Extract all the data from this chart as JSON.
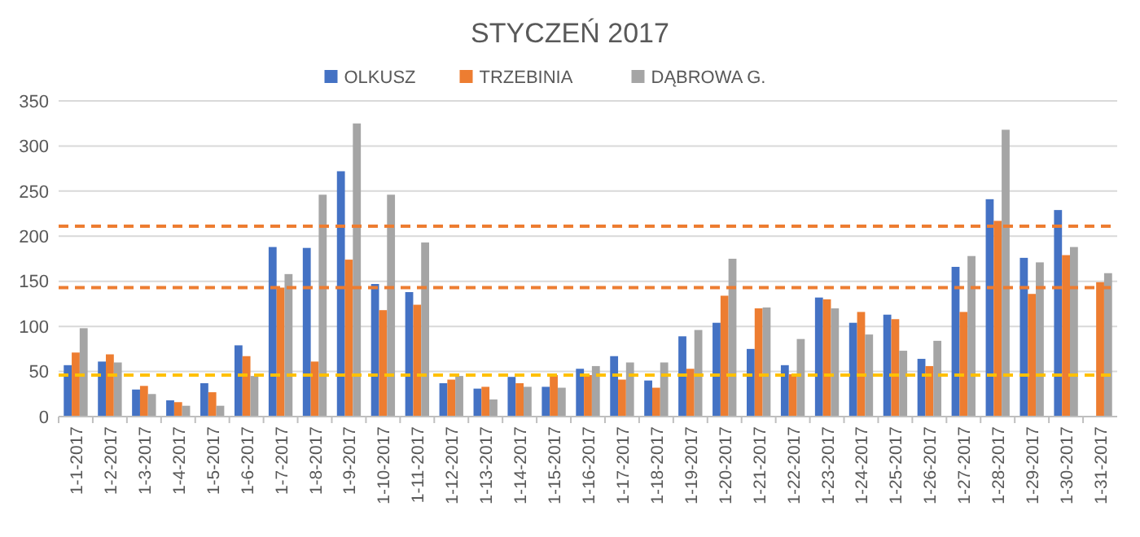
{
  "chart_data": {
    "type": "bar",
    "title": "STYCZEŃ 2017",
    "categories": [
      "1-1-2017",
      "1-2-2017",
      "1-3-2017",
      "1-4-2017",
      "1-5-2017",
      "1-6-2017",
      "1-7-2017",
      "1-8-2017",
      "1-9-2017",
      "1-10-2017",
      "1-11-2017",
      "1-12-2017",
      "1-13-2017",
      "1-14-2017",
      "1-15-2017",
      "1-16-2017",
      "1-17-2017",
      "1-18-2017",
      "1-19-2017",
      "1-20-2017",
      "1-21-2017",
      "1-22-2017",
      "1-23-2017",
      "1-24-2017",
      "1-25-2017",
      "1-26-2017",
      "1-27-2017",
      "1-28-2017",
      "1-29-2017",
      "1-30-2017",
      "1-31-2017"
    ],
    "series": [
      {
        "name": "OLKUSZ",
        "color": "#4472c4",
        "values": [
          57,
          61,
          30,
          18,
          37,
          79,
          188,
          187,
          272,
          147,
          138,
          37,
          31,
          44,
          33,
          53,
          67,
          40,
          89,
          104,
          75,
          57,
          132,
          104,
          113,
          64,
          166,
          241,
          176,
          229,
          null
        ]
      },
      {
        "name": "TRZEBINIA",
        "color": "#ed7d31",
        "values": [
          71,
          69,
          34,
          16,
          27,
          67,
          143,
          61,
          174,
          118,
          124,
          41,
          33,
          37,
          46,
          46,
          41,
          32,
          53,
          134,
          120,
          47,
          130,
          116,
          108,
          56,
          116,
          217,
          136,
          179,
          149
        ]
      },
      {
        "name": "DĄBROWA G.",
        "color": "#a5a5a5",
        "values": [
          98,
          60,
          25,
          12,
          12,
          45,
          158,
          246,
          325,
          246,
          193,
          45,
          19,
          33,
          32,
          56,
          60,
          60,
          96,
          175,
          121,
          86,
          120,
          91,
          73,
          84,
          178,
          318,
          171,
          188,
          159
        ]
      }
    ],
    "ylim": [
      0,
      350
    ],
    "yticks": [
      0,
      50,
      100,
      150,
      200,
      250,
      300,
      350
    ],
    "grid": "y",
    "legend": "top",
    "ref_lines": [
      {
        "axis": "y",
        "value": 211,
        "color": "#ed7d31",
        "line_style": "dashed"
      },
      {
        "axis": "y",
        "value": 143,
        "color": "#ed7d31",
        "line_style": "dashed"
      },
      {
        "axis": "y",
        "value": 46,
        "color": "#ffc000",
        "line_style": "dashed"
      }
    ]
  }
}
